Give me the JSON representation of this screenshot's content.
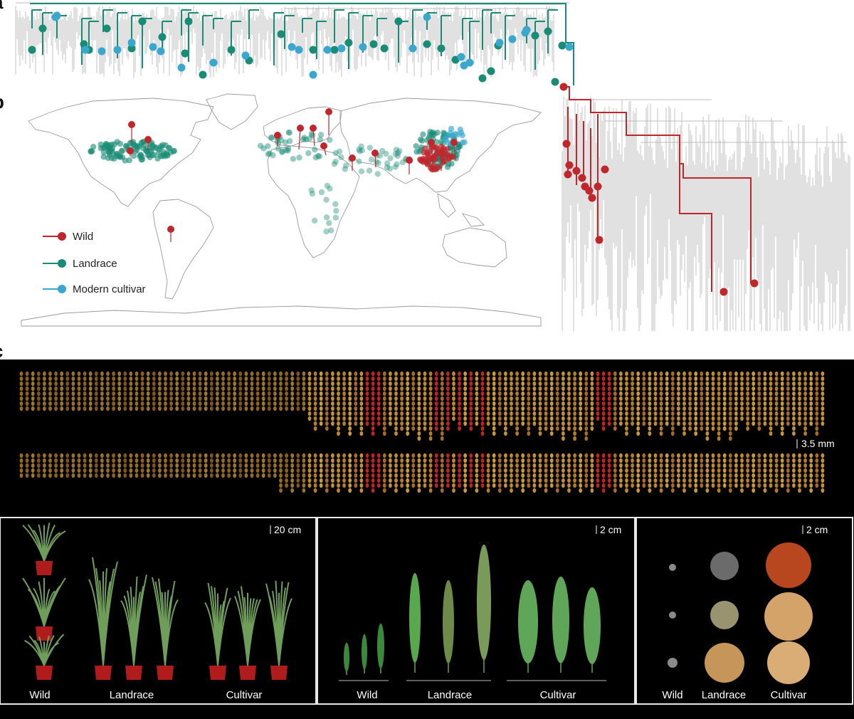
{
  "panels": {
    "a": "a",
    "b": "b",
    "c": "c"
  },
  "colors": {
    "wild": "#c0272d",
    "landrace": "#198c75",
    "cultivar": "#3aa7cf",
    "tree": "#bdbdbd"
  },
  "legend": [
    {
      "label": "Wild",
      "color": "#c0272d"
    },
    {
      "label": "Landrace",
      "color": "#198c75"
    },
    {
      "label": "Modern cultivar",
      "color": "#3aa7cf"
    }
  ],
  "seed_strip": {
    "scale": "3.5 mm"
  },
  "photos": [
    {
      "scale": "20 cm",
      "labels": [
        "Wild",
        "Landrace",
        "Cultivar"
      ]
    },
    {
      "scale": "2 cm",
      "labels": [
        "Wild",
        "Landrace",
        "Cultivar"
      ]
    },
    {
      "scale": "2 cm",
      "labels": [
        "Wild",
        "Landrace",
        "Cultivar"
      ]
    }
  ]
}
